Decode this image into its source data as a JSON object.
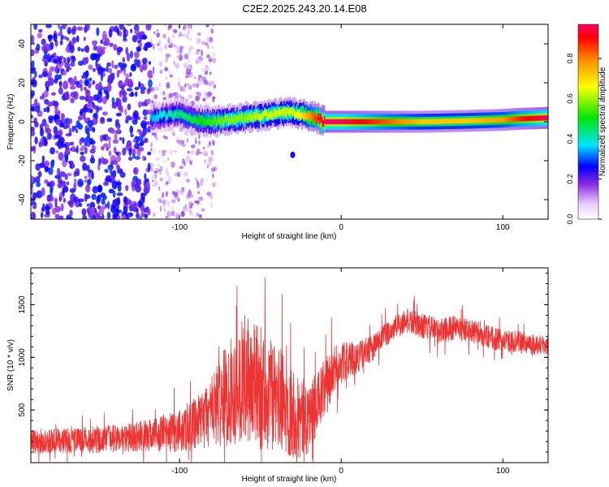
{
  "title": "C2E2.2025.243.20.14.E08",
  "chart_data": [
    {
      "type": "heatmap",
      "xlabel": "Height of straight line (km)",
      "ylabel": "Frequency (Hz)",
      "xlim": [
        -192,
        128
      ],
      "ylim": [
        -50,
        50
      ],
      "xticks": [
        -100,
        0,
        100
      ],
      "yticks": [
        -40,
        -20,
        0,
        20,
        40
      ],
      "colorbar": {
        "label": "Normalized spectral amplitude",
        "range": [
          0.0,
          0.97
        ],
        "ticks": [
          0.0,
          0.2,
          0.4,
          0.6,
          0.8
        ],
        "tick_labels": [
          "0.0",
          "0.2",
          "0.4",
          "0.6",
          "0.8"
        ]
      },
      "ridge": {
        "x": [
          -118,
          -110,
          -100,
          -90,
          -80,
          -70,
          -60,
          -50,
          -40,
          -30,
          -25,
          -20,
          -15,
          -10,
          0,
          10,
          20,
          50,
          80,
          100,
          110,
          128
        ],
        "y": [
          2,
          3,
          4,
          1,
          0,
          1,
          2,
          3,
          4,
          5,
          4,
          3,
          2,
          0,
          0,
          0,
          0,
          0,
          0.5,
          1,
          1.5,
          2
        ],
        "amplitude": [
          0.3,
          0.35,
          0.4,
          0.45,
          0.5,
          0.55,
          0.55,
          0.6,
          0.6,
          0.6,
          0.65,
          0.75,
          0.85,
          0.95,
          0.95,
          0.9,
          0.85,
          0.7,
          0.7,
          0.75,
          0.85,
          0.95
        ]
      },
      "noise_region": {
        "x": [
          -192,
          -118
        ],
        "amplitude": [
          0.15,
          0.3
        ]
      },
      "isolated_blob": {
        "x": -30,
        "y": -17,
        "amplitude": 0.25
      }
    },
    {
      "type": "line",
      "xlabel": "Height of straight line (km)",
      "ylabel": "SNR (10 * v/v)",
      "xlim": [
        -192,
        128
      ],
      "ylim": [
        0,
        1850
      ],
      "xticks": [
        -100,
        0,
        100
      ],
      "yticks": [
        500,
        1000,
        1500
      ],
      "series": [
        {
          "color": "#ee3333",
          "x": [
            -192,
            -170,
            -150,
            -130,
            -120,
            -110,
            -100,
            -90,
            -80,
            -70,
            -60,
            -50,
            -40,
            -30,
            -25,
            -20,
            -15,
            -10,
            -5,
            0,
            10,
            20,
            30,
            40,
            50,
            60,
            70,
            80,
            90,
            100,
            110,
            120,
            128
          ],
          "y": [
            200,
            210,
            220,
            240,
            260,
            280,
            300,
            350,
            500,
            650,
            800,
            700,
            600,
            500,
            400,
            450,
            550,
            700,
            850,
            950,
            1000,
            1100,
            1250,
            1350,
            1300,
            1250,
            1280,
            1250,
            1200,
            1150,
            1150,
            1120,
            1120
          ],
          "noise_amplitude": [
            120,
            120,
            130,
            140,
            150,
            180,
            200,
            250,
            350,
            500,
            600,
            600,
            500,
            450,
            400,
            350,
            300,
            300,
            250,
            200,
            150,
            130,
            120,
            120,
            120,
            120,
            120,
            110,
            110,
            110,
            100,
            100,
            100
          ]
        }
      ]
    }
  ]
}
